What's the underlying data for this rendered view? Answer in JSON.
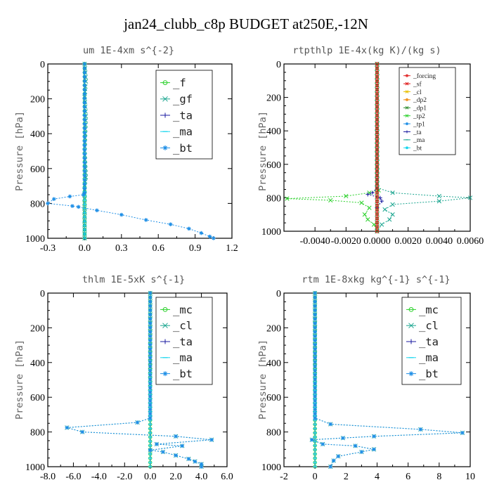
{
  "title": "jan24_clubb_c8p  BUDGET at250E,-12N",
  "colors": {
    "frame": "#000000",
    "green": "#2bd12b",
    "teal": "#1aa58f",
    "blue": "#1f8fe6",
    "navy": "#1a1aa0",
    "cyan": "#18d6ee",
    "red": "#e01818",
    "orange": "#f08000",
    "gold": "#e8c000",
    "dgreen": "#2a8a2a",
    "brown": "#b05a1e"
  },
  "chart_data": [
    {
      "type": "line",
      "title": "um   1E-4xm s^{-2}",
      "ylabel": "Pressure [hPa]",
      "xlim": [
        -0.3,
        1.2
      ],
      "ylim": [
        1000,
        0
      ],
      "xticks": [
        "-0.3",
        "0.0",
        "0.3",
        "0.6",
        "0.9",
        "1.2"
      ],
      "xtick_values": [
        -0.3,
        0.0,
        0.3,
        0.6,
        0.9,
        1.2
      ],
      "yticks": [
        "0",
        "200",
        "400",
        "600",
        "800",
        "1000"
      ],
      "ytick_values": [
        0,
        200,
        400,
        600,
        800,
        1000
      ],
      "legend": [
        "_f",
        "_gf",
        "_ta",
        "_ma",
        "_bt"
      ],
      "series": [
        {
          "name": "_f",
          "color": "green",
          "marker": "circle",
          "points": [
            [
              0.0,
              0
            ],
            [
              0.0,
              1000
            ]
          ]
        },
        {
          "name": "_gf",
          "color": "teal",
          "marker": "x",
          "points": [
            [
              0.0,
              0
            ],
            [
              0.01,
              100
            ],
            [
              0.0,
              190
            ],
            [
              0.01,
              300
            ],
            [
              0.0,
              500
            ],
            [
              0.01,
              650
            ],
            [
              0.0,
              700
            ],
            [
              0.0,
              1000
            ]
          ]
        },
        {
          "name": "_ta",
          "color": "navy",
          "marker": "plus",
          "points": [
            [
              0.0,
              0
            ],
            [
              0.0,
              1000
            ]
          ]
        },
        {
          "name": "_ma",
          "color": "cyan",
          "marker": "dash",
          "points": [
            [
              0.0,
              0
            ],
            [
              0.0,
              1000
            ]
          ]
        },
        {
          "name": "_bt",
          "color": "blue",
          "marker": "star",
          "points": [
            [
              0.0,
              0
            ],
            [
              0.0,
              740
            ],
            [
              -0.01,
              750
            ],
            [
              -0.12,
              760
            ],
            [
              -0.25,
              775
            ],
            [
              -0.3,
              800
            ],
            [
              -0.1,
              815
            ],
            [
              -0.05,
              820
            ],
            [
              0.1,
              840
            ],
            [
              0.3,
              865
            ],
            [
              0.5,
              895
            ],
            [
              0.7,
              920
            ],
            [
              0.85,
              945
            ],
            [
              0.95,
              970
            ],
            [
              1.02,
              990
            ],
            [
              1.05,
              1000
            ]
          ]
        }
      ]
    },
    {
      "type": "line",
      "title": "rtpthlp   1E-4x(kg K)/(kg s)",
      "ylabel": "Pressure [hPa]",
      "xlim": [
        -0.006,
        0.006
      ],
      "ylim": [
        1000,
        0
      ],
      "xticks": [
        "-0.0040",
        "-0.0020",
        "0.0000",
        "0.0020",
        "0.0040",
        "0.0060"
      ],
      "xtick_values": [
        -0.004,
        -0.002,
        0.0,
        0.002,
        0.004,
        0.006
      ],
      "yticks": [
        "0",
        "200",
        "400",
        "600",
        "800",
        "1000"
      ],
      "ytick_values": [
        0,
        200,
        400,
        600,
        800,
        1000
      ],
      "legend": [
        "_forcing",
        "_sf",
        "_cl",
        "_dp2",
        "_dp1",
        "_tp2",
        "_tp1",
        "_ta",
        "_ma",
        "_bt"
      ],
      "series": [
        {
          "name": "_tp2",
          "color": "green",
          "marker": "x",
          "points": [
            [
              0.0,
              0
            ],
            [
              0.0,
              740
            ],
            [
              0.0001,
              755
            ],
            [
              -0.0005,
              770
            ],
            [
              -0.002,
              790
            ],
            [
              -0.0058,
              805
            ],
            [
              -0.003,
              815
            ],
            [
              -0.001,
              830
            ],
            [
              -0.0005,
              860
            ],
            [
              -0.0008,
              900
            ],
            [
              -0.0006,
              930
            ],
            [
              -0.0002,
              960
            ],
            [
              0.0,
              1000
            ]
          ]
        },
        {
          "name": "_tp1",
          "color": "teal",
          "marker": "x",
          "points": [
            [
              0.0,
              0
            ],
            [
              0.0,
              740
            ],
            [
              0.001,
              770
            ],
            [
              0.004,
              790
            ],
            [
              0.006,
              800
            ],
            [
              0.004,
              820
            ],
            [
              0.001,
              840
            ],
            [
              0.0005,
              870
            ],
            [
              0.001,
              900
            ],
            [
              0.0008,
              930
            ],
            [
              0.0003,
              960
            ],
            [
              0.0,
              1000
            ]
          ]
        },
        {
          "name": "_ta",
          "color": "navy",
          "marker": "plus",
          "points": [
            [
              0.0,
              740
            ],
            [
              -0.0003,
              770
            ],
            [
              -0.0006,
              780
            ],
            [
              0.0002,
              800
            ],
            [
              0.0003,
              820
            ],
            [
              0.0,
              860
            ]
          ]
        },
        {
          "name": "_dp1",
          "color": "dgreen",
          "marker": "x",
          "points": [
            [
              0.0,
              0
            ],
            [
              0.0,
              1000
            ]
          ]
        },
        {
          "name": "_forcing",
          "color": "red",
          "marker": "circle",
          "points": [
            [
              0.0,
              0
            ],
            [
              0.0,
              1000
            ]
          ]
        }
      ]
    },
    {
      "type": "line",
      "title": "thlm   1E-5xK s^{-1}",
      "ylabel": "Pressure [hPa]",
      "xlim": [
        -8.0,
        6.0
      ],
      "ylim": [
        1000,
        0
      ],
      "xticks": [
        "-8.0",
        "-6.0",
        "-4.0",
        "-2.0",
        "0.0",
        "2.0",
        "4.0",
        "6.0"
      ],
      "xtick_values": [
        -8.0,
        -6.0,
        -4.0,
        -2.0,
        0.0,
        2.0,
        4.0,
        6.0
      ],
      "yticks": [
        "0",
        "200",
        "400",
        "600",
        "800",
        "1000"
      ],
      "ytick_values": [
        0,
        200,
        400,
        600,
        800,
        1000
      ],
      "legend": [
        "_mc",
        "_cl",
        "_ta",
        "_ma",
        "_bt"
      ],
      "series": [
        {
          "name": "_mc",
          "color": "green",
          "marker": "circle",
          "points": [
            [
              0.0,
              0
            ],
            [
              0.0,
              1000
            ]
          ]
        },
        {
          "name": "_cl",
          "color": "teal",
          "marker": "x",
          "points": [
            [
              0.0,
              0
            ],
            [
              0.0,
              720
            ],
            [
              -1.0,
              745
            ],
            [
              -6.5,
              775
            ],
            [
              -5.3,
              800
            ],
            [
              2.0,
              825
            ],
            [
              4.8,
              845
            ],
            [
              0.5,
              870
            ],
            [
              2.5,
              880
            ],
            [
              0.0,
              905
            ],
            [
              1.0,
              915
            ],
            [
              2.0,
              935
            ],
            [
              3.0,
              955
            ],
            [
              3.5,
              970
            ],
            [
              4.0,
              985
            ],
            [
              4.0,
              1000
            ]
          ]
        },
        {
          "name": "_ta",
          "color": "navy",
          "marker": "plus",
          "points": [
            [
              0.0,
              0
            ],
            [
              0.0,
              1000
            ]
          ]
        },
        {
          "name": "_ma",
          "color": "cyan",
          "marker": "dash",
          "points": [
            [
              0.0,
              0
            ],
            [
              0.0,
              1000
            ]
          ]
        },
        {
          "name": "_bt",
          "color": "blue",
          "marker": "star",
          "points": [
            [
              0.0,
              0
            ],
            [
              0.0,
              720
            ],
            [
              -1.0,
              745
            ],
            [
              -6.5,
              775
            ],
            [
              -5.3,
              800
            ],
            [
              2.0,
              825
            ],
            [
              4.8,
              845
            ],
            [
              0.5,
              870
            ],
            [
              2.5,
              880
            ],
            [
              0.0,
              905
            ],
            [
              1.0,
              915
            ],
            [
              2.0,
              935
            ],
            [
              3.0,
              955
            ],
            [
              3.5,
              970
            ],
            [
              4.0,
              985
            ],
            [
              4.0,
              1000
            ]
          ]
        }
      ]
    },
    {
      "type": "line",
      "title": "rtm   1E-8xkg kg^{-1} s^{-1}",
      "ylabel": "Pressure [hPa]",
      "xlim": [
        -2,
        10
      ],
      "ylim": [
        1000,
        0
      ],
      "xticks": [
        "-2",
        "0",
        "2",
        "4",
        "6",
        "8",
        "10"
      ],
      "xtick_values": [
        -2,
        0,
        2,
        4,
        6,
        8,
        10
      ],
      "yticks": [
        "0",
        "200",
        "400",
        "600",
        "800",
        "1000"
      ],
      "ytick_values": [
        0,
        200,
        400,
        600,
        800,
        1000
      ],
      "legend": [
        "_mc",
        "_cl",
        "_ta",
        "_ma",
        "_bt"
      ],
      "series": [
        {
          "name": "_mc",
          "color": "green",
          "marker": "circle",
          "points": [
            [
              0.0,
              0
            ],
            [
              0.0,
              1000
            ]
          ]
        },
        {
          "name": "_cl",
          "color": "teal",
          "marker": "x",
          "points": [
            [
              0.0,
              0
            ],
            [
              0.0,
              720
            ],
            [
              1.0,
              755
            ],
            [
              6.8,
              785
            ],
            [
              9.5,
              805
            ],
            [
              3.8,
              825
            ],
            [
              1.8,
              835
            ],
            [
              -0.2,
              845
            ],
            [
              0.5,
              870
            ],
            [
              2.6,
              880
            ],
            [
              3.8,
              900
            ],
            [
              3.0,
              915
            ],
            [
              1.5,
              940
            ],
            [
              1.2,
              965
            ],
            [
              1.0,
              1000
            ]
          ]
        },
        {
          "name": "_ta",
          "color": "navy",
          "marker": "plus",
          "points": [
            [
              0.0,
              0
            ],
            [
              0.0,
              1000
            ]
          ]
        },
        {
          "name": "_ma",
          "color": "cyan",
          "marker": "dash",
          "points": [
            [
              0.0,
              0
            ],
            [
              0.0,
              1000
            ]
          ]
        },
        {
          "name": "_bt",
          "color": "blue",
          "marker": "star",
          "points": [
            [
              0.0,
              0
            ],
            [
              0.0,
              720
            ],
            [
              1.0,
              755
            ],
            [
              6.8,
              785
            ],
            [
              9.5,
              805
            ],
            [
              3.8,
              825
            ],
            [
              1.8,
              835
            ],
            [
              -0.2,
              845
            ],
            [
              0.5,
              870
            ],
            [
              2.6,
              880
            ],
            [
              3.8,
              900
            ],
            [
              3.0,
              915
            ],
            [
              1.5,
              940
            ],
            [
              1.2,
              965
            ],
            [
              1.0,
              1000
            ]
          ]
        }
      ]
    }
  ]
}
